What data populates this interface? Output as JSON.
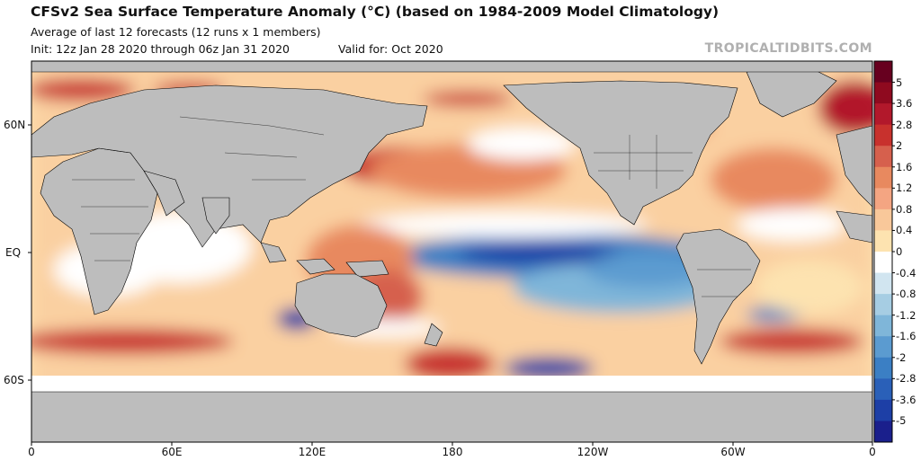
{
  "title": "CFSv2 Sea Surface Temperature Anomaly (°C) (based on 1984-2009 Model Climatology)",
  "subtitle_line1": "Average of last 12 forecasts (12 runs x 1 members)",
  "init": "Init: 12z Jan 28 2020 through 06z Jan 31 2020",
  "valid": "Valid for: Oct 2020",
  "credit": "TROPICALTIDBITS.COM",
  "lat_labels": [
    "60N",
    "EQ",
    "60S"
  ],
  "lon_labels": [
    "0",
    "60E",
    "120E",
    "180",
    "120W",
    "60W",
    "0"
  ],
  "colorbar": {
    "labels": [
      "5",
      "3.6",
      "2.8",
      "2",
      "1.6",
      "1.2",
      "0.8",
      "0.4",
      "0",
      "-0.4",
      "-0.8",
      "-1.2",
      "-1.6",
      "-2",
      "-2.8",
      "-3.6",
      "-5"
    ],
    "colors": [
      "#67001f",
      "#8f0a1f",
      "#b2182b",
      "#c8312d",
      "#d6604d",
      "#e8895f",
      "#f4a582",
      "#f9c89a",
      "#fde3b0",
      "#ffffff",
      "#d1e5f0",
      "#a6cde3",
      "#7fb6d9",
      "#5b9bd0",
      "#3b7fc4",
      "#2a60b8",
      "#1d3fa6",
      "#1a1f8c"
    ]
  },
  "colors": {
    "land": "#bdbdbd",
    "ice": "#ffffff",
    "border": "#000000"
  }
}
